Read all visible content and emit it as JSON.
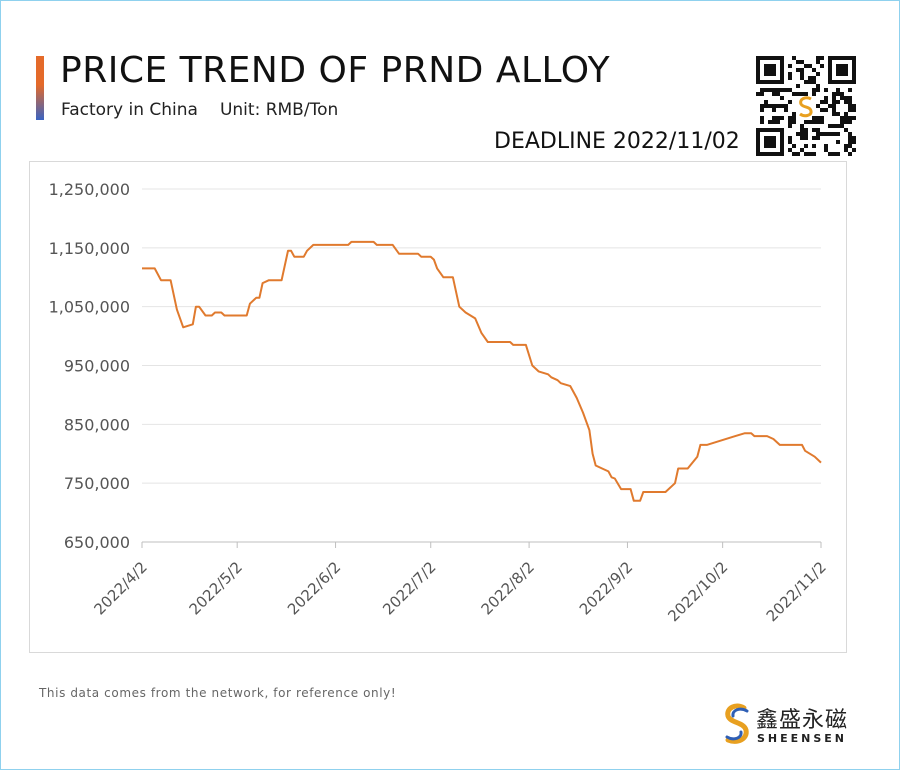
{
  "header": {
    "title": "PRICE TREND OF PRND ALLOY",
    "subtitle_source": "Factory in China",
    "subtitle_unit": "Unit: RMB/Ton",
    "deadline": "DEADLINE 2022/11/02"
  },
  "footer": {
    "note": "This data comes from the network, for reference only!",
    "brand_cn": "鑫盛永磁",
    "brand_en": "SHEENSEN"
  },
  "colors": {
    "line": "#e07a2e",
    "grid": "#e4e4e4",
    "axis": "#bfbfbf",
    "accent_orange": "#e46a2a",
    "accent_blue": "#3a63c2",
    "frame": "#8fd1ee"
  },
  "icons": [
    "qr-code-icon",
    "sheensen-logo-icon"
  ],
  "chart_data": {
    "type": "line",
    "title": "PRICE TREND OF PRND ALLOY",
    "xlabel": "",
    "ylabel": "",
    "ylim": [
      650000,
      1250000
    ],
    "yticks": [
      650000,
      750000,
      850000,
      950000,
      1050000,
      1150000,
      1250000
    ],
    "ytick_labels": [
      "650,000",
      "750,000",
      "850,000",
      "950,000",
      "1,050,000",
      "1,150,000",
      "1,250,000"
    ],
    "xlim": [
      "2022-04-02",
      "2022-11-02"
    ],
    "xticks": [
      "2022-04-02",
      "2022-05-02",
      "2022-06-02",
      "2022-07-02",
      "2022-08-02",
      "2022-09-02",
      "2022-10-02",
      "2022-11-02"
    ],
    "xtick_labels": [
      "2022/4/2",
      "2022/5/2",
      "2022/6/2",
      "2022/7/2",
      "2022/8/2",
      "2022/9/2",
      "2022/10/2",
      "2022/11/2"
    ],
    "grid": true,
    "legend": "none",
    "series": [
      {
        "points": [
          [
            "2022-04-02",
            1115000
          ],
          [
            "2022-04-06",
            1115000
          ],
          [
            "2022-04-08",
            1095000
          ],
          [
            "2022-04-11",
            1095000
          ],
          [
            "2022-04-13",
            1045000
          ],
          [
            "2022-04-15",
            1015000
          ],
          [
            "2022-04-18",
            1020000
          ],
          [
            "2022-04-19",
            1050000
          ],
          [
            "2022-04-20",
            1050000
          ],
          [
            "2022-04-22",
            1035000
          ],
          [
            "2022-04-24",
            1035000
          ],
          [
            "2022-04-25",
            1040000
          ],
          [
            "2022-04-27",
            1040000
          ],
          [
            "2022-04-28",
            1035000
          ],
          [
            "2022-05-05",
            1035000
          ],
          [
            "2022-05-06",
            1055000
          ],
          [
            "2022-05-08",
            1065000
          ],
          [
            "2022-05-09",
            1065000
          ],
          [
            "2022-05-10",
            1090000
          ],
          [
            "2022-05-12",
            1095000
          ],
          [
            "2022-05-16",
            1095000
          ],
          [
            "2022-05-18",
            1145000
          ],
          [
            "2022-05-19",
            1145000
          ],
          [
            "2022-05-20",
            1135000
          ],
          [
            "2022-05-23",
            1135000
          ],
          [
            "2022-05-24",
            1145000
          ],
          [
            "2022-05-26",
            1155000
          ],
          [
            "2022-06-06",
            1155000
          ],
          [
            "2022-06-07",
            1160000
          ],
          [
            "2022-06-14",
            1160000
          ],
          [
            "2022-06-15",
            1155000
          ],
          [
            "2022-06-20",
            1155000
          ],
          [
            "2022-06-22",
            1140000
          ],
          [
            "2022-06-28",
            1140000
          ],
          [
            "2022-06-29",
            1135000
          ],
          [
            "2022-07-02",
            1135000
          ],
          [
            "2022-07-03",
            1130000
          ],
          [
            "2022-07-04",
            1115000
          ],
          [
            "2022-07-06",
            1100000
          ],
          [
            "2022-07-09",
            1100000
          ],
          [
            "2022-07-11",
            1050000
          ],
          [
            "2022-07-13",
            1040000
          ],
          [
            "2022-07-16",
            1030000
          ],
          [
            "2022-07-18",
            1005000
          ],
          [
            "2022-07-20",
            990000
          ],
          [
            "2022-07-27",
            990000
          ],
          [
            "2022-07-28",
            985000
          ],
          [
            "2022-08-01",
            985000
          ],
          [
            "2022-08-03",
            950000
          ],
          [
            "2022-08-05",
            940000
          ],
          [
            "2022-08-08",
            935000
          ],
          [
            "2022-08-09",
            930000
          ],
          [
            "2022-08-11",
            925000
          ],
          [
            "2022-08-12",
            920000
          ],
          [
            "2022-08-15",
            915000
          ],
          [
            "2022-08-16",
            905000
          ],
          [
            "2022-08-17",
            895000
          ],
          [
            "2022-08-19",
            870000
          ],
          [
            "2022-08-21",
            840000
          ],
          [
            "2022-08-22",
            800000
          ],
          [
            "2022-08-23",
            780000
          ],
          [
            "2022-08-25",
            775000
          ],
          [
            "2022-08-27",
            770000
          ],
          [
            "2022-08-28",
            760000
          ],
          [
            "2022-08-29",
            758000
          ],
          [
            "2022-08-31",
            740000
          ],
          [
            "2022-09-03",
            740000
          ],
          [
            "2022-09-04",
            720000
          ],
          [
            "2022-09-06",
            720000
          ],
          [
            "2022-09-07",
            735000
          ],
          [
            "2022-09-14",
            735000
          ],
          [
            "2022-09-17",
            750000
          ],
          [
            "2022-09-18",
            775000
          ],
          [
            "2022-09-21",
            775000
          ],
          [
            "2022-09-24",
            795000
          ],
          [
            "2022-09-25",
            815000
          ],
          [
            "2022-09-27",
            815000
          ],
          [
            "2022-10-06",
            830000
          ],
          [
            "2022-10-09",
            835000
          ],
          [
            "2022-10-11",
            835000
          ],
          [
            "2022-10-12",
            830000
          ],
          [
            "2022-10-16",
            830000
          ],
          [
            "2022-10-18",
            825000
          ],
          [
            "2022-10-20",
            815000
          ],
          [
            "2022-10-27",
            815000
          ],
          [
            "2022-10-28",
            805000
          ],
          [
            "2022-10-31",
            795000
          ],
          [
            "2022-11-02",
            785000
          ]
        ]
      }
    ]
  }
}
